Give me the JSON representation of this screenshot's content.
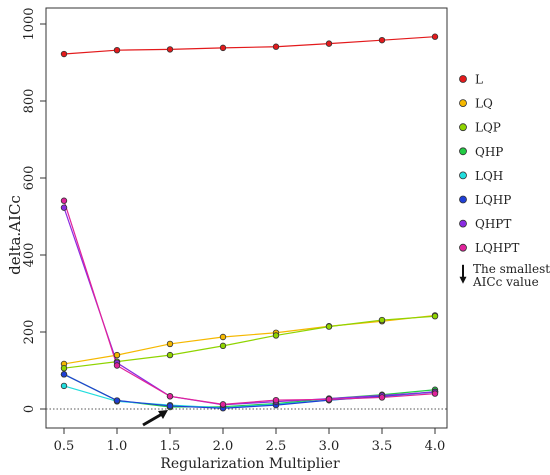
{
  "chart_data": {
    "type": "line",
    "title": "",
    "xlabel": "Regularization Multiplier",
    "ylabel": "delta.AICc",
    "x": [
      0.5,
      1.0,
      1.5,
      2.0,
      2.5,
      3.0,
      3.5,
      4.0
    ],
    "x_tick_labels": [
      "0.5",
      "1.0",
      "1.5",
      "2.0",
      "2.5",
      "3.0",
      "3.5",
      "4.0"
    ],
    "y_ticks": [
      0,
      200,
      400,
      600,
      800,
      1000
    ],
    "y_tick_labels": [
      "0",
      "200",
      "400",
      "600",
      "800",
      "1000"
    ],
    "xlim": [
      0.5,
      4.0
    ],
    "ylim": [
      -30,
      1000
    ],
    "reference_line": {
      "y": 0,
      "style": "dotted"
    },
    "series": [
      {
        "name": "L",
        "color": "#e31a1c",
        "values": [
          922,
          932,
          934,
          938,
          941,
          949,
          958,
          967
        ]
      },
      {
        "name": "LQ",
        "color": "#f5b800",
        "values": [
          117,
          140,
          169,
          187,
          198,
          215,
          228,
          243
        ]
      },
      {
        "name": "LQP",
        "color": "#8fd400",
        "values": [
          106,
          123,
          140,
          164,
          191,
          214,
          231,
          241
        ]
      },
      {
        "name": "QHP",
        "color": "#22cc44",
        "values": [
          90,
          22,
          5,
          6,
          14,
          27,
          37,
          50
        ]
      },
      {
        "name": "LQH",
        "color": "#22dddd",
        "values": [
          60,
          20,
          10,
          3,
          12,
          23,
          32,
          44
        ]
      },
      {
        "name": "LQHP",
        "color": "#1f3fd6",
        "values": [
          90,
          22,
          8,
          2,
          10,
          23,
          33,
          45
        ]
      },
      {
        "name": "QHPT",
        "color": "#8a2be2",
        "values": [
          523,
          120,
          33,
          11,
          19,
          27,
          35,
          44
        ]
      },
      {
        "name": "LQHPT",
        "color": "#e0229b",
        "values": [
          541,
          113,
          33,
          12,
          23,
          25,
          30,
          40
        ]
      }
    ],
    "annotation": {
      "text_line1": "The smallest",
      "text_line2": "AICc value",
      "arrow_at": {
        "x": 1.5,
        "y": 0
      }
    },
    "grid": false,
    "legend_position": "right"
  }
}
